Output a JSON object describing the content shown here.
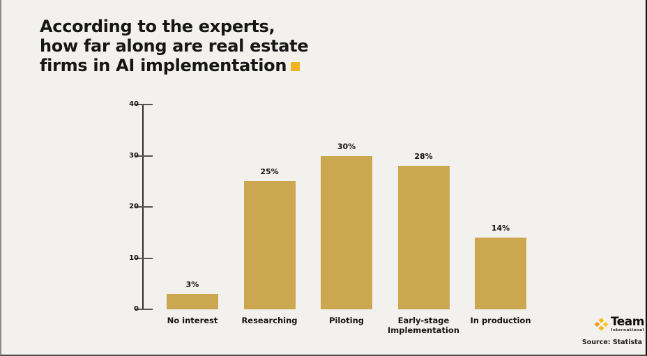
{
  "title": {
    "lines": [
      "According to the experts,",
      "how far along are real estate",
      "firms in AI implementation"
    ],
    "accent_color": "#f0b323"
  },
  "chart_data": {
    "type": "bar",
    "title": "According to the experts, how far along are real estate firms in AI implementation",
    "categories": [
      "No interest",
      "Researching",
      "Piloting",
      "Early-stage Implementation",
      "In production"
    ],
    "values": [
      3,
      25,
      30,
      28,
      14
    ],
    "value_labels": [
      "3%",
      "25%",
      "30%",
      "28%",
      "14%"
    ],
    "xlabel": "",
    "ylabel": "",
    "ylim": [
      0,
      40
    ],
    "yticks": [
      0,
      10,
      20,
      30,
      40
    ],
    "grid": false,
    "legend": false,
    "bar_color": "#cba850"
  },
  "footer": {
    "logo": {
      "brand": "Team",
      "subbrand": "International",
      "icon": "team-international-asterisk-icon",
      "icon_colors": [
        "#f7941d",
        "#fdb913",
        "#ffc52e"
      ]
    },
    "source": "Source: Statista"
  },
  "colors": {
    "background": "#f2f1ee",
    "bar": "#cba850",
    "accent_yellow": "#f0b323",
    "text": "#161616"
  }
}
